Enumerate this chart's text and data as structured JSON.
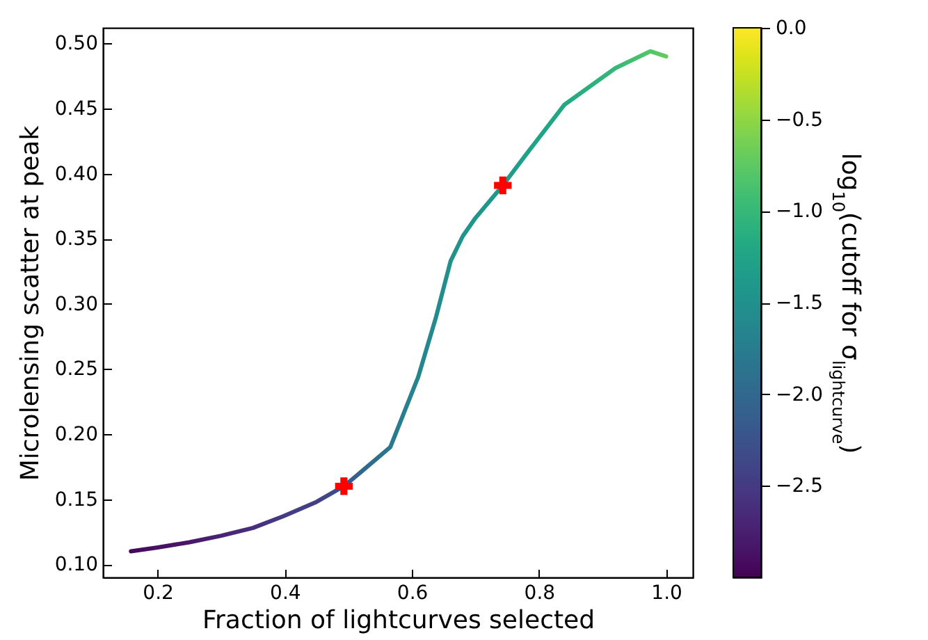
{
  "chart_data": {
    "type": "line",
    "xlabel": "Fraction of lightcurves selected",
    "ylabel": "Microlensing scatter at peak",
    "clabel": "log$_{10}$(cutoff for σ$_{lightcurve}$)",
    "xlim": [
      0.114,
      1.042
    ],
    "ylim": [
      0.09,
      0.512
    ],
    "xticks": [
      0.2,
      0.4,
      0.6,
      0.8,
      {
        "value": 1.0,
        "label": "1.0"
      }
    ],
    "yticks": [
      {
        "value": 0.1,
        "label": "0.10"
      },
      0.15,
      {
        "value": 0.2,
        "label": "0.20"
      },
      0.25,
      {
        "value": 0.3,
        "label": "0.30"
      },
      0.35,
      {
        "value": 0.4,
        "label": "0.40"
      },
      0.45,
      {
        "value": 0.5,
        "label": "0.50"
      }
    ],
    "clim": [
      -3.0,
      0.0
    ],
    "cticks": [
      {
        "value": 0,
        "label": "0.0"
      },
      {
        "value": -0.5,
        "label": "−0.5"
      },
      {
        "value": -1,
        "label": "−1.0"
      },
      {
        "value": -1.5,
        "label": "−1.5"
      },
      {
        "value": -2,
        "label": "−2.0"
      },
      {
        "value": -2.5,
        "label": "−2.5"
      }
    ],
    "series": [
      {
        "type": "line",
        "x": [
          0.158,
          0.2,
          0.25,
          0.3,
          0.35,
          0.398,
          0.45,
          0.493,
          0.52,
          0.566,
          0.61,
          0.638,
          0.661,
          0.68,
          0.7,
          0.743,
          0.78,
          0.84,
          0.92,
          0.975,
          1.0
        ],
        "values": [
          0.11,
          0.113,
          0.117,
          0.122,
          0.128,
          0.137,
          0.148,
          0.16,
          0.171,
          0.19,
          0.244,
          0.29,
          0.333,
          0.352,
          0.366,
          0.391,
          0.415,
          0.453,
          0.481,
          0.494,
          0.49
        ],
        "colors": [
          "#46085c",
          "#471164",
          "#481769",
          "#482475",
          "#472f7d",
          "#443b84",
          "#424086",
          "#3b528b",
          "#31668e",
          "#29798e",
          "#25858e",
          "#238a8d",
          "#21918c",
          "#20958b",
          "#20958b",
          "#1f998a",
          "#1fa188",
          "#22a884",
          "#35b779",
          "#54c568",
          "#66cb5d"
        ]
      },
      {
        "type": "scatter",
        "x": [
          0.743
        ],
        "values": [
          0.391
        ],
        "color": "#ff0000",
        "marker": "cross"
      },
      {
        "type": "scatter",
        "x": [
          0.493
        ],
        "values": [
          0.16
        ],
        "color": "#ff0000",
        "marker": "cross"
      }
    ]
  }
}
